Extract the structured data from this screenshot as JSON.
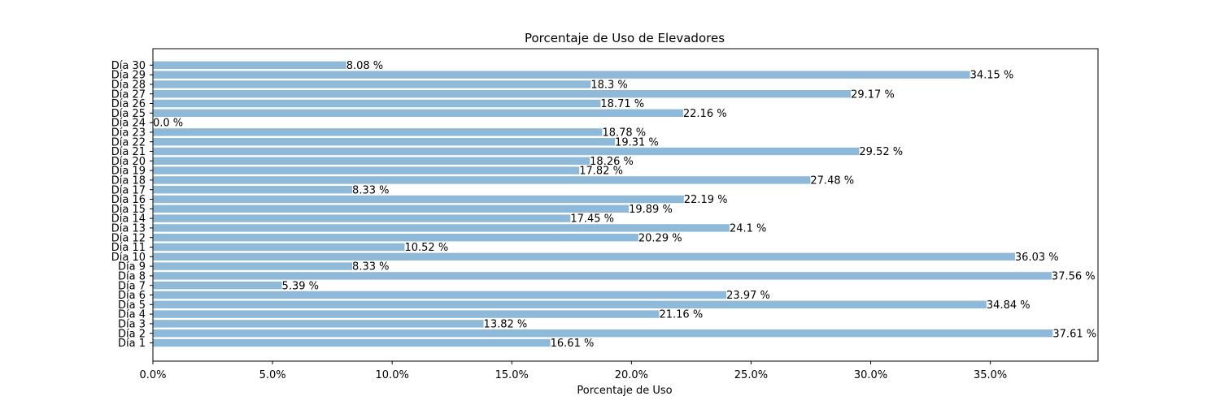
{
  "chart_data": {
    "type": "bar",
    "orientation": "horizontal",
    "title": "Porcentaje de Uso de Elevadores",
    "xlabel": "Porcentaje de Uso",
    "ylabel": "",
    "xlim": [
      0,
      39.5
    ],
    "x_ticks": [
      0,
      5,
      10,
      15,
      20,
      25,
      30,
      35
    ],
    "x_tick_labels": [
      "0.0%",
      "5.0%",
      "10.0%",
      "15.0%",
      "20.0%",
      "25.0%",
      "30.0%",
      "35.0%"
    ],
    "grid": false,
    "bar_color": "#8fb9d8",
    "categories": [
      "Día 1",
      "Día 2",
      "Día 3",
      "Día 4",
      "Día 5",
      "Día 6",
      "Día 7",
      "Día 8",
      "Día 9",
      "Día 10",
      "Día 11",
      "Día 12",
      "Día 13",
      "Día 14",
      "Día 15",
      "Día 16",
      "Día 17",
      "Día 18",
      "Día 19",
      "Día 20",
      "Día 21",
      "Día 22",
      "Día 23",
      "Día 24",
      "Día 25",
      "Día 26",
      "Día 27",
      "Día 28",
      "Día 29",
      "Día 30"
    ],
    "values": [
      16.61,
      37.61,
      13.82,
      21.16,
      34.84,
      23.97,
      5.39,
      37.56,
      8.33,
      36.03,
      10.52,
      20.29,
      24.1,
      17.45,
      19.89,
      22.19,
      8.33,
      27.48,
      17.82,
      18.26,
      29.52,
      19.31,
      18.78,
      0.0,
      22.16,
      18.71,
      29.17,
      18.3,
      34.15,
      8.08
    ],
    "data_labels": [
      "16.61 %",
      "37.61 %",
      "13.82 %",
      "21.16 %",
      "34.84 %",
      "23.97 %",
      "5.39 %",
      "37.56 %",
      "8.33 %",
      "36.03 %",
      "10.52 %",
      "20.29 %",
      "24.1 %",
      "17.45 %",
      "19.89 %",
      "22.19 %",
      "8.33 %",
      "27.48 %",
      "17.82 %",
      "18.26 %",
      "29.52 %",
      "19.31 %",
      "18.78 %",
      "0.0 %",
      "22.16 %",
      "18.71 %",
      "29.17 %",
      "18.3 %",
      "34.15 %",
      "8.08 %"
    ]
  }
}
